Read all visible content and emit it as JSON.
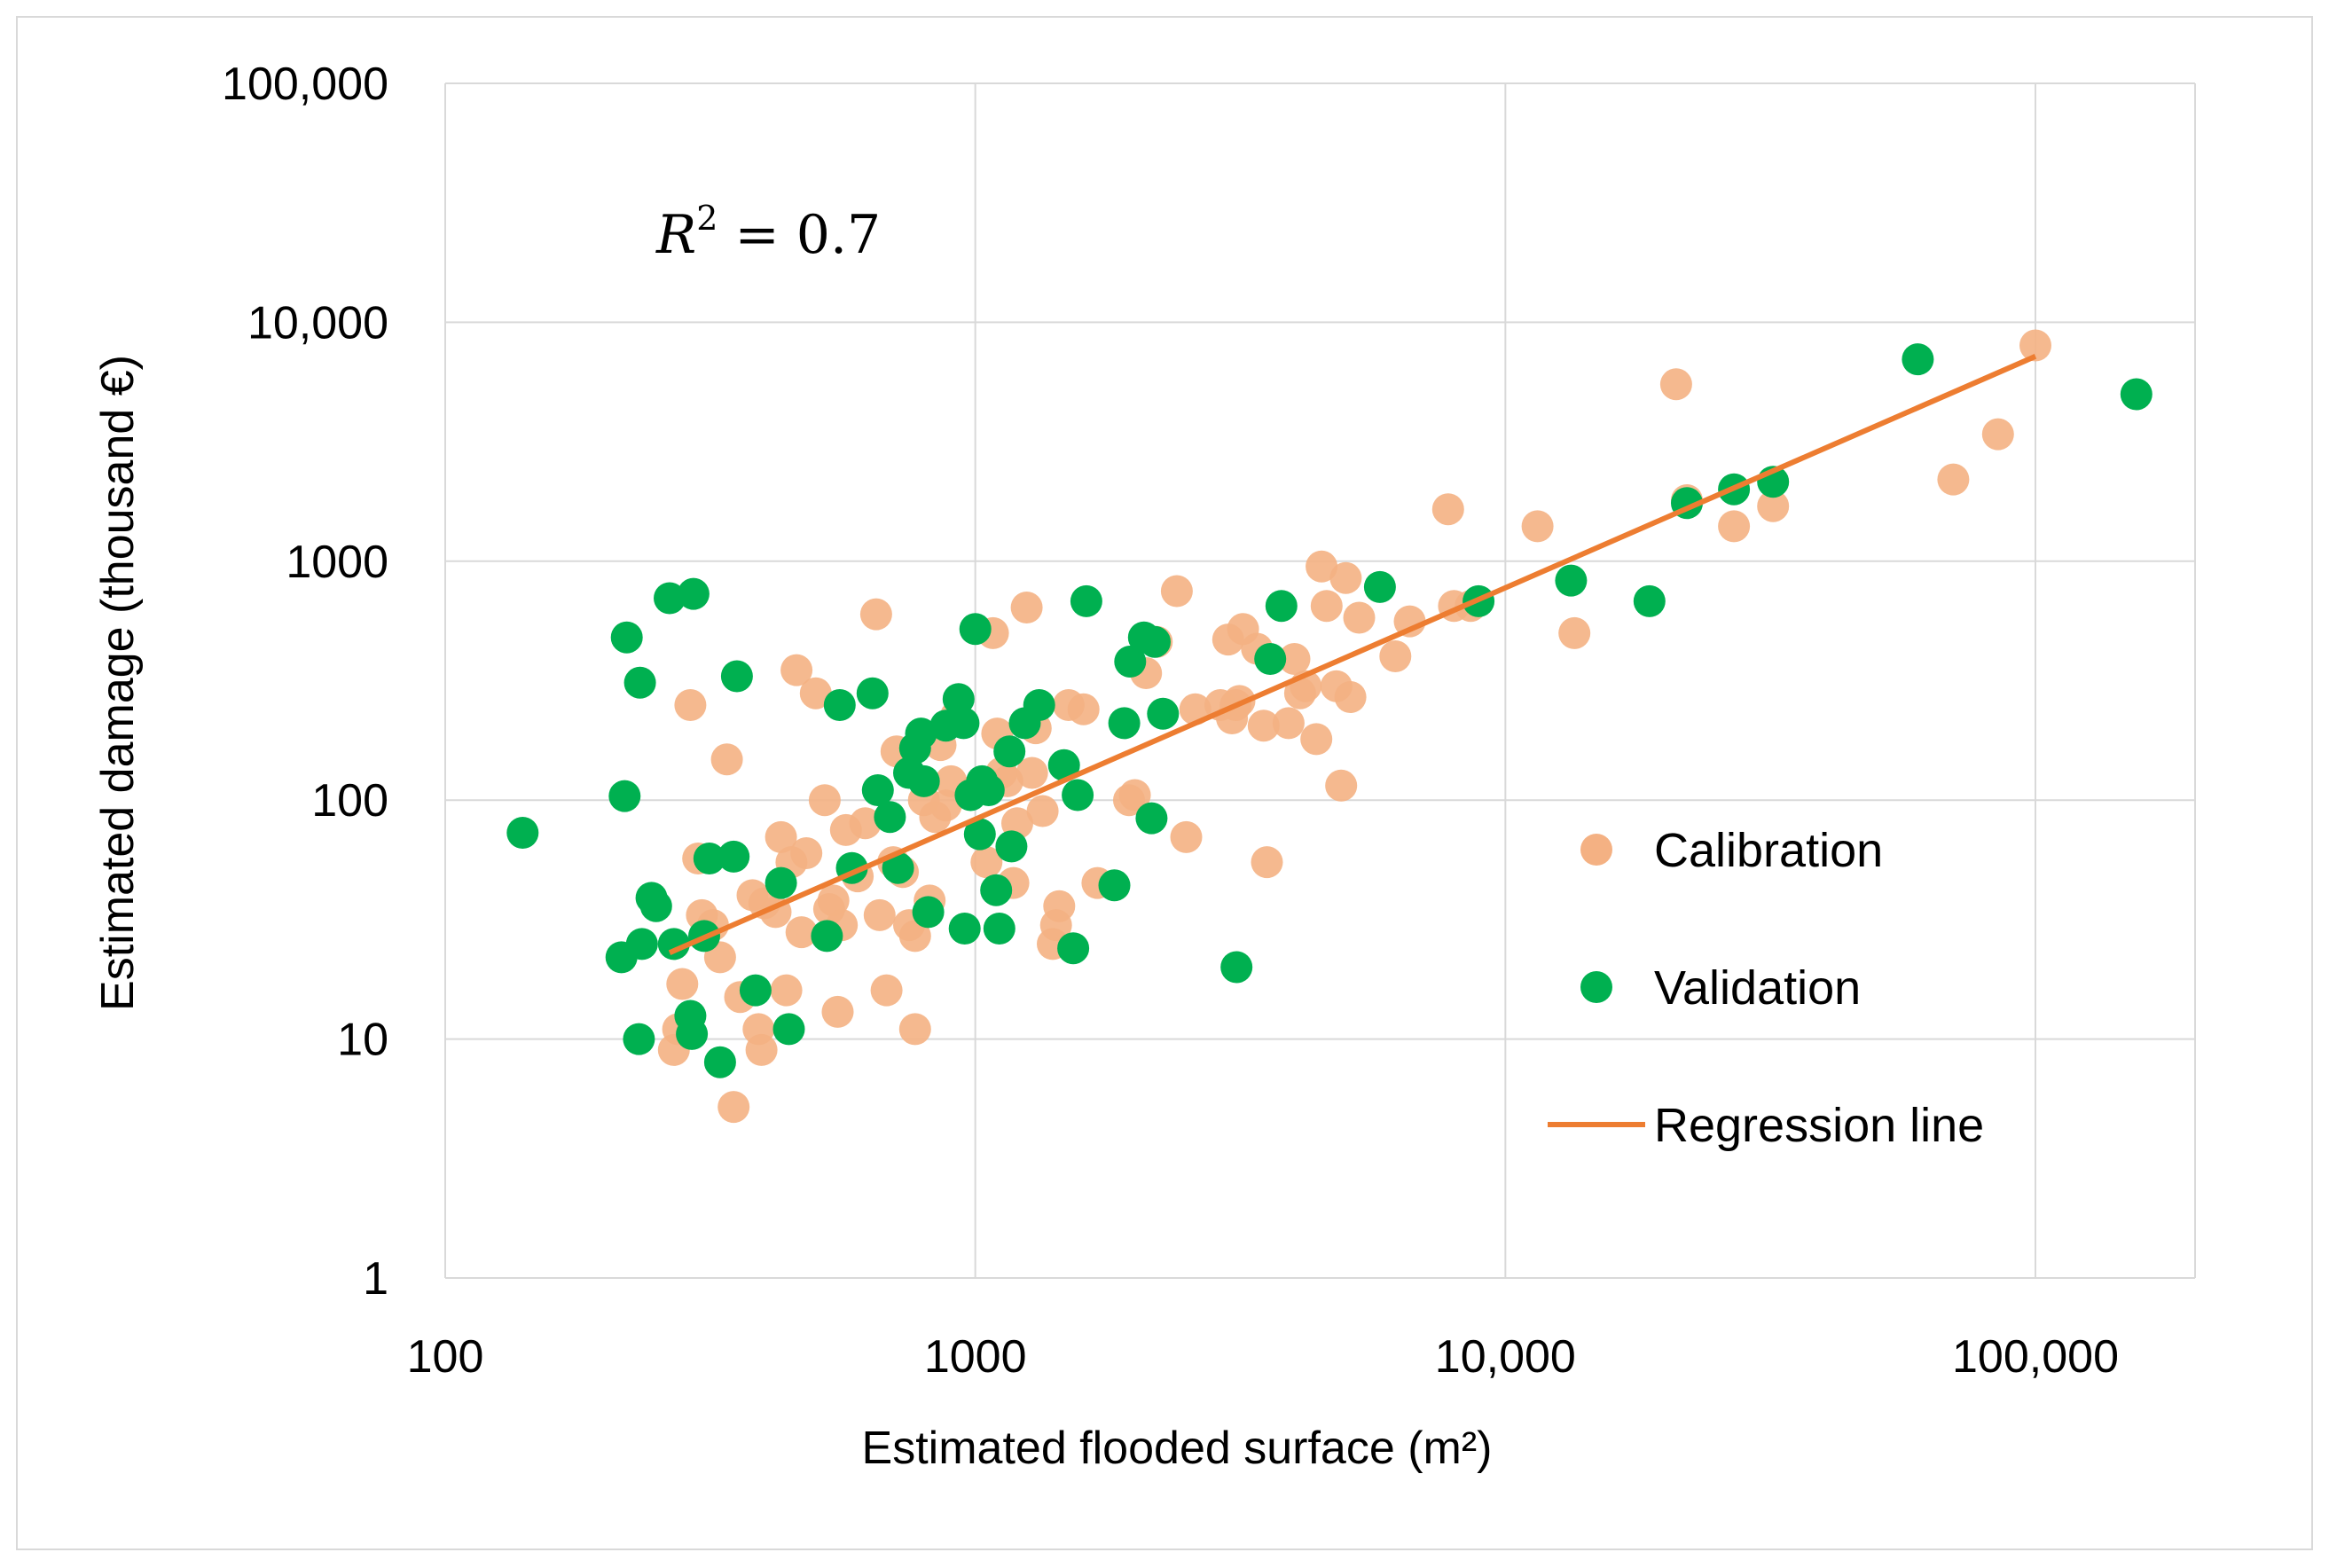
{
  "chart_data": {
    "type": "scatter",
    "title": "",
    "annotation": {
      "r2_symbol": "R",
      "r2_exp": "2",
      "r2_eq": " = 0.7"
    },
    "xlabel": "Estimated flooded surface (m²)",
    "ylabel": "Estimated damage (thousand €)",
    "x_scale": "log",
    "y_scale": "log",
    "xlim": [
      100,
      200000
    ],
    "ylim": [
      1,
      100000
    ],
    "x_ticks": [
      {
        "value": 100,
        "label": "100"
      },
      {
        "value": 1000,
        "label": "1000"
      },
      {
        "value": 10000,
        "label": "10,000"
      },
      {
        "value": 100000,
        "label": "100,000"
      }
    ],
    "y_ticks": [
      {
        "value": 1,
        "label": "1"
      },
      {
        "value": 10,
        "label": "10"
      },
      {
        "value": 100,
        "label": "100"
      },
      {
        "value": 1000,
        "label": "1000"
      },
      {
        "value": 10000,
        "label": "10,000"
      },
      {
        "value": 100000,
        "label": "100,000"
      }
    ],
    "grid": true,
    "legend_position": "right",
    "colors": {
      "calibration": "#f4b183",
      "validation": "#00b050",
      "regression": "#ed7d31",
      "grid": "#d9d9d9"
    },
    "series": [
      {
        "name": "Calibration",
        "kind": "points",
        "points": [
          [
            270,
            9
          ],
          [
            275,
            11
          ],
          [
            280,
            17
          ],
          [
            290,
            250
          ],
          [
            300,
            57
          ],
          [
            305,
            33
          ],
          [
            320,
            30
          ],
          [
            330,
            22
          ],
          [
            340,
            148
          ],
          [
            350,
            5.2
          ],
          [
            360,
            15
          ],
          [
            380,
            40
          ],
          [
            390,
            11
          ],
          [
            395,
            9
          ],
          [
            400,
            37
          ],
          [
            420,
            34
          ],
          [
            430,
            70
          ],
          [
            440,
            16
          ],
          [
            450,
            55
          ],
          [
            460,
            350
          ],
          [
            470,
            28
          ],
          [
            480,
            60
          ],
          [
            500,
            280
          ],
          [
            520,
            100
          ],
          [
            530,
            35
          ],
          [
            540,
            38
          ],
          [
            550,
            13
          ],
          [
            560,
            30
          ],
          [
            570,
            75
          ],
          [
            600,
            48
          ],
          [
            620,
            80
          ],
          [
            650,
            600
          ],
          [
            660,
            33
          ],
          [
            680,
            16
          ],
          [
            700,
            55
          ],
          [
            710,
            160
          ],
          [
            730,
            50
          ],
          [
            750,
            30
          ],
          [
            770,
            27
          ],
          [
            770,
            11
          ],
          [
            800,
            100
          ],
          [
            820,
            38
          ],
          [
            840,
            85
          ],
          [
            860,
            170
          ],
          [
            880,
            95
          ],
          [
            900,
            120
          ],
          [
            920,
            225
          ],
          [
            1000,
            110
          ],
          [
            1050,
            55
          ],
          [
            1080,
            500
          ],
          [
            1100,
            190
          ],
          [
            1120,
            130
          ],
          [
            1150,
            120
          ],
          [
            1180,
            45
          ],
          [
            1200,
            80
          ],
          [
            1250,
            640
          ],
          [
            1280,
            130
          ],
          [
            1300,
            200
          ],
          [
            1340,
            90
          ],
          [
            1400,
            25
          ],
          [
            1420,
            30
          ],
          [
            1440,
            36
          ],
          [
            1500,
            250
          ],
          [
            1600,
            240
          ],
          [
            1700,
            45
          ],
          [
            1950,
            100
          ],
          [
            2000,
            105
          ],
          [
            2100,
            340
          ],
          [
            2200,
            460
          ],
          [
            2400,
            750
          ],
          [
            2500,
            70
          ],
          [
            2600,
            240
          ],
          [
            2900,
            250
          ],
          [
            3000,
            470
          ],
          [
            3050,
            220
          ],
          [
            3100,
            250
          ],
          [
            3150,
            260
          ],
          [
            3200,
            520
          ],
          [
            3400,
            430
          ],
          [
            3500,
            205
          ],
          [
            3550,
            55
          ],
          [
            3900,
            210
          ],
          [
            4000,
            390
          ],
          [
            4100,
            280
          ],
          [
            4200,
            300
          ],
          [
            4400,
            180
          ],
          [
            4500,
            950
          ],
          [
            4600,
            650
          ],
          [
            4800,
            300
          ],
          [
            4900,
            115
          ],
          [
            5000,
            850
          ],
          [
            5100,
            270
          ],
          [
            5300,
            580
          ],
          [
            6200,
            400
          ],
          [
            6600,
            560
          ],
          [
            7800,
            1650
          ],
          [
            8000,
            650
          ],
          [
            8600,
            650
          ],
          [
            11500,
            1400
          ],
          [
            13500,
            500
          ],
          [
            21000,
            5500
          ],
          [
            22000,
            1800
          ],
          [
            27000,
            1400
          ],
          [
            32000,
            1700
          ],
          [
            70000,
            2200
          ],
          [
            85000,
            3400
          ],
          [
            100000,
            8000
          ]
        ]
      },
      {
        "name": "Validation",
        "kind": "points",
        "points": [
          [
            140,
            73
          ],
          [
            215,
            22
          ],
          [
            218,
            104
          ],
          [
            220,
            480
          ],
          [
            232,
            10
          ],
          [
            233,
            310
          ],
          [
            235,
            25
          ],
          [
            245,
            39
          ],
          [
            250,
            36
          ],
          [
            265,
            700
          ],
          [
            270,
            25
          ],
          [
            290,
            12.5
          ],
          [
            292,
            10.5
          ],
          [
            294,
            730
          ],
          [
            308,
            27
          ],
          [
            315,
            57
          ],
          [
            330,
            8
          ],
          [
            350,
            58
          ],
          [
            355,
            330
          ],
          [
            385,
            16
          ],
          [
            430,
            45
          ],
          [
            445,
            11
          ],
          [
            525,
            27
          ],
          [
            555,
            250
          ],
          [
            585,
            52
          ],
          [
            640,
            280
          ],
          [
            655,
            110
          ],
          [
            690,
            85
          ],
          [
            715,
            52
          ],
          [
            750,
            130
          ],
          [
            770,
            165
          ],
          [
            790,
            190
          ],
          [
            800,
            120
          ],
          [
            815,
            34
          ],
          [
            880,
            205
          ],
          [
            930,
            265
          ],
          [
            950,
            210
          ],
          [
            955,
            29
          ],
          [
            980,
            105
          ],
          [
            1000,
            520
          ],
          [
            1020,
            72
          ],
          [
            1030,
            120
          ],
          [
            1060,
            110
          ],
          [
            1095,
            42
          ],
          [
            1110,
            29
          ],
          [
            1160,
            160
          ],
          [
            1170,
            64
          ],
          [
            1240,
            210
          ],
          [
            1320,
            250
          ],
          [
            1470,
            140
          ],
          [
            1530,
            24
          ],
          [
            1560,
            105
          ],
          [
            1620,
            680
          ],
          [
            1830,
            44
          ],
          [
            1910,
            210
          ],
          [
            1960,
            380
          ],
          [
            2080,
            480
          ],
          [
            2150,
            84
          ],
          [
            2180,
            460
          ],
          [
            2260,
            230
          ],
          [
            3110,
            20
          ],
          [
            3600,
            390
          ],
          [
            3780,
            650
          ],
          [
            5800,
            780
          ],
          [
            8900,
            680
          ],
          [
            13300,
            830
          ],
          [
            18700,
            680
          ],
          [
            22000,
            1750
          ],
          [
            27000,
            2000
          ],
          [
            32000,
            2150
          ],
          [
            60000,
            7000
          ],
          [
            155000,
            5000
          ]
        ]
      },
      {
        "name": "Regression line",
        "kind": "line",
        "points": [
          [
            265,
            23
          ],
          [
            100000,
            7200
          ]
        ]
      }
    ]
  }
}
